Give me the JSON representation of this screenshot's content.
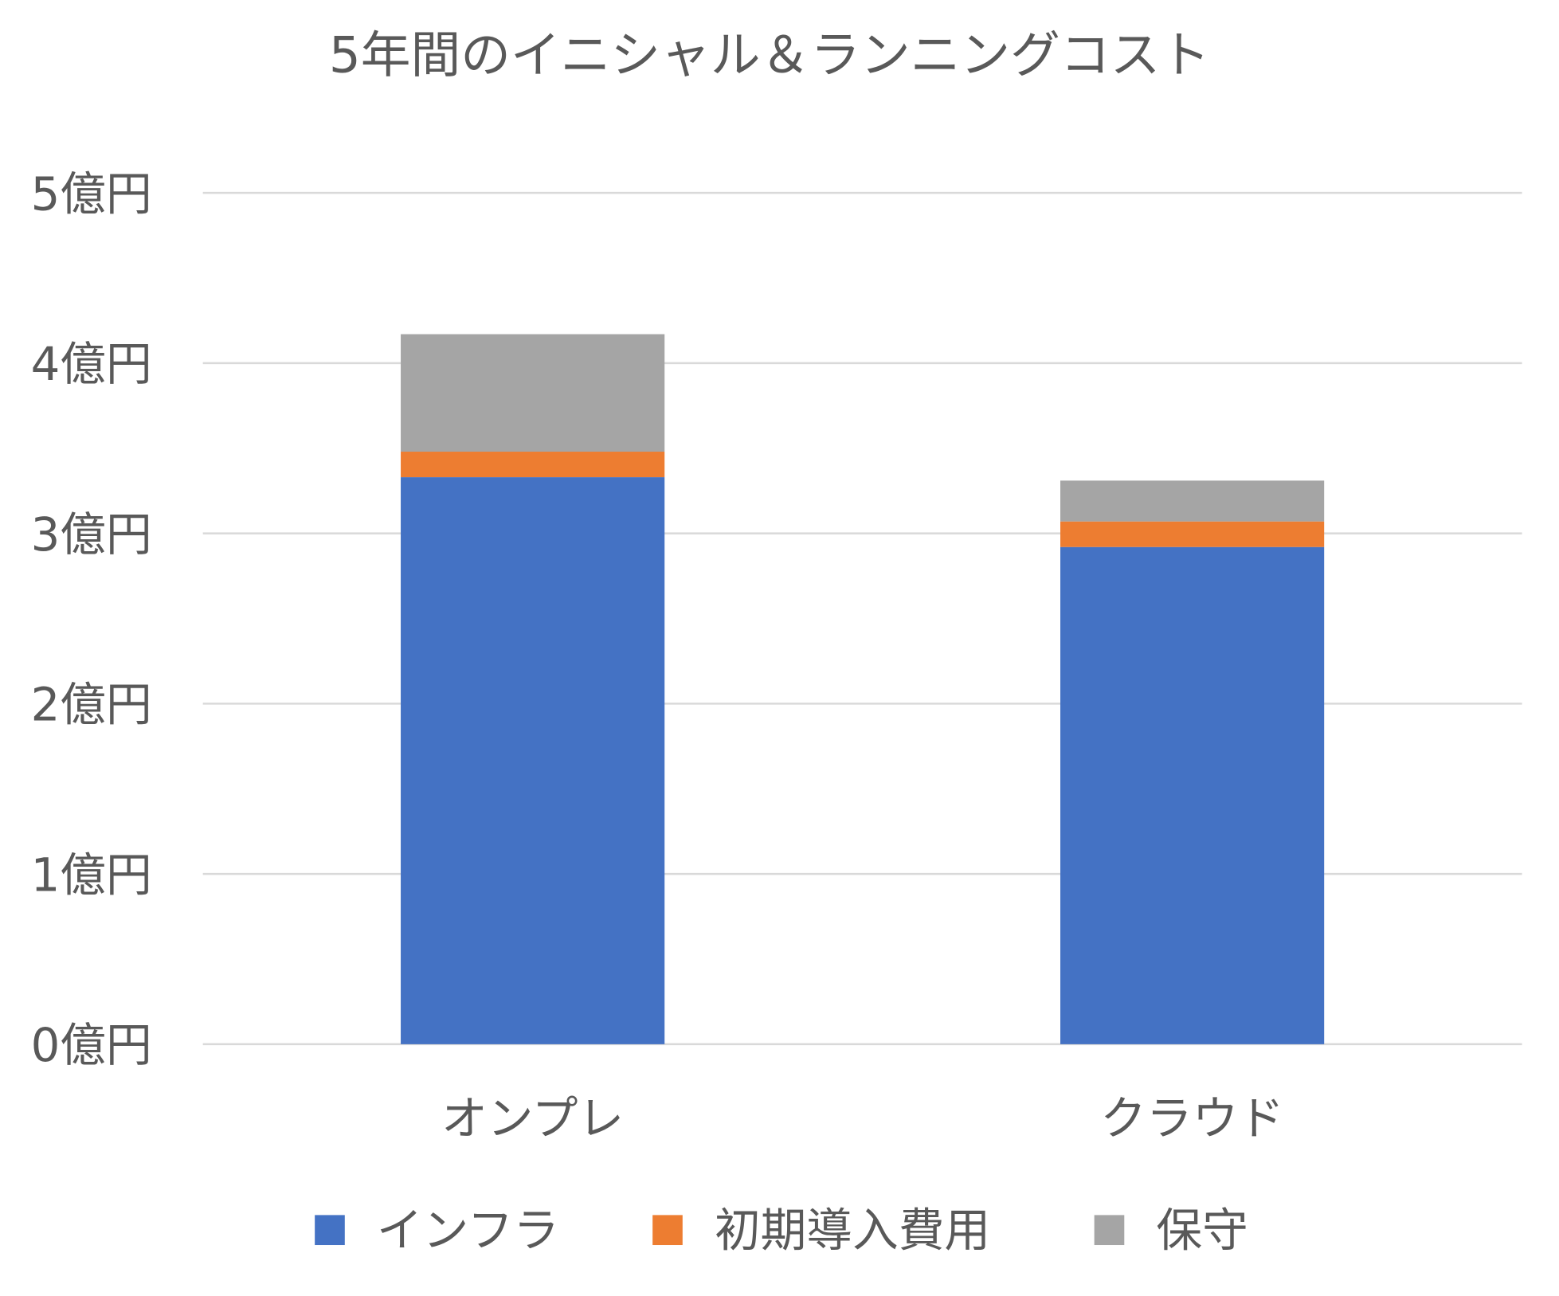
{
  "chart_data": {
    "type": "bar",
    "stacked": true,
    "title": "5年間のイニシャル＆ランニングコスト",
    "xlabel": "",
    "ylabel": "",
    "categories": [
      "オンプレ",
      "クラウド"
    ],
    "series": [
      {
        "name": "インフラ",
        "color": "#4472C4",
        "values": [
          3.33,
          2.92
        ]
      },
      {
        "name": "初期導入費用",
        "color": "#ED7D31",
        "values": [
          0.15,
          0.15
        ]
      },
      {
        "name": "保守",
        "color": "#A5A5A5",
        "values": [
          0.69,
          0.24
        ]
      }
    ],
    "ylim": [
      0,
      5
    ],
    "yticks": [
      0,
      1,
      2,
      3,
      4,
      5
    ],
    "ytick_labels": [
      "0億円",
      "1億円",
      "2億円",
      "3億円",
      "4億円",
      "5億円"
    ],
    "grid": true,
    "legend_position": "bottom"
  }
}
